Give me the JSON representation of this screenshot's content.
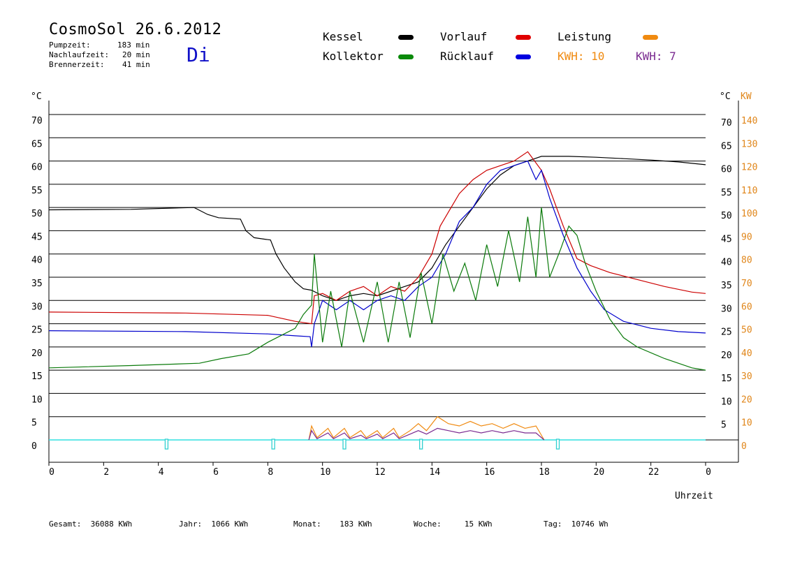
{
  "header": {
    "title": "CosmoSol 26.6.2012",
    "day": "Di",
    "stats": [
      {
        "label": "Pumpzeit:",
        "value": "183 min"
      },
      {
        "label": "Nachlaufzeit:",
        "value": "20 min"
      },
      {
        "label": "Brennerzeit:",
        "value": "41 min"
      }
    ]
  },
  "legend": {
    "kessel": {
      "label": "Kessel",
      "color": "#000000"
    },
    "kollektor": {
      "label": "Kollektor",
      "color": "#0a7a0a"
    },
    "vorlauf": {
      "label": "Vorlauf",
      "color": "#e00000"
    },
    "ruecklauf": {
      "label": "Rücklauf",
      "color": "#0000e0"
    },
    "leistung": {
      "label": "Leistung",
      "color": "#f08a10"
    },
    "kwh1": {
      "label": "KWH:",
      "value": "10",
      "color": "#f08a10"
    },
    "kwh2": {
      "label": "KWH:",
      "value": "7",
      "color": "#7a2a90"
    }
  },
  "footer": {
    "gesamt": {
      "label": "Gesamt:",
      "value": "36088 KWh"
    },
    "jahr": {
      "label": "Jahr:",
      "value": "1066 KWh"
    },
    "monat": {
      "label": "Monat:",
      "value": "183 KWh"
    },
    "woche": {
      "label": "Woche:",
      "value": "15 KWh"
    },
    "tag": {
      "label": "Tag:",
      "value": "10746 Wh"
    }
  },
  "chart_data": {
    "type": "line",
    "xlabel": "Uhrzeit",
    "ylabel_left": "°C",
    "ylabel_right_temp": "°C",
    "ylabel_right_power": "KW",
    "xlim": [
      0,
      24
    ],
    "ylim": [
      0,
      70
    ],
    "x_ticks": [
      "0",
      "2",
      "4",
      "6",
      "8",
      "10",
      "12",
      "14",
      "16",
      "18",
      "20",
      "22",
      "0"
    ],
    "y_ticks_left": [
      0,
      5,
      10,
      15,
      20,
      25,
      30,
      35,
      40,
      45,
      50,
      55,
      60,
      65,
      70
    ],
    "y_ticks_right_temp": [
      5,
      10,
      15,
      20,
      25,
      30,
      35,
      40,
      45,
      50,
      55,
      60,
      65,
      70
    ],
    "y_ticks_right_power": [
      0,
      10,
      20,
      30,
      40,
      50,
      60,
      70,
      80,
      90,
      100,
      110,
      120,
      130,
      140
    ],
    "series": [
      {
        "name": "Kessel",
        "color": "#000000",
        "points": [
          [
            0,
            49.5
          ],
          [
            3,
            49.6
          ],
          [
            5.3,
            50
          ],
          [
            5.8,
            48.5
          ],
          [
            6.2,
            47.8
          ],
          [
            7.0,
            47.5
          ],
          [
            7.2,
            45
          ],
          [
            7.5,
            43.5
          ],
          [
            8.1,
            43
          ],
          [
            8.3,
            40
          ],
          [
            8.6,
            37
          ],
          [
            9.0,
            34
          ],
          [
            9.3,
            32.5
          ],
          [
            9.6,
            32.2
          ],
          [
            10.0,
            31
          ],
          [
            10.5,
            30
          ],
          [
            11.0,
            31
          ],
          [
            11.5,
            31.5
          ],
          [
            12.0,
            31
          ],
          [
            12.5,
            32
          ],
          [
            13.0,
            33
          ],
          [
            13.5,
            34
          ],
          [
            14.0,
            37
          ],
          [
            14.5,
            42
          ],
          [
            15.0,
            46
          ],
          [
            15.5,
            50
          ],
          [
            16.0,
            54
          ],
          [
            16.5,
            57
          ],
          [
            17.0,
            59
          ],
          [
            17.5,
            60
          ],
          [
            18.0,
            61
          ],
          [
            19.0,
            61
          ],
          [
            20.0,
            60.8
          ],
          [
            21.0,
            60.5
          ],
          [
            22.0,
            60.2
          ],
          [
            23.0,
            59.8
          ],
          [
            24.0,
            59.2
          ]
        ]
      },
      {
        "name": "Vorlauf",
        "color": "#cc0000",
        "points": [
          [
            0,
            27.5
          ],
          [
            5,
            27.3
          ],
          [
            8,
            26.8
          ],
          [
            9.0,
            25.5
          ],
          [
            9.6,
            25
          ],
          [
            9.7,
            31
          ],
          [
            10.0,
            31.5
          ],
          [
            10.5,
            30
          ],
          [
            11.0,
            32
          ],
          [
            11.5,
            33
          ],
          [
            12.0,
            31
          ],
          [
            12.5,
            33
          ],
          [
            13.0,
            32
          ],
          [
            13.5,
            35
          ],
          [
            14.0,
            40
          ],
          [
            14.3,
            46
          ],
          [
            14.6,
            49
          ],
          [
            15.0,
            53
          ],
          [
            15.5,
            56
          ],
          [
            16.0,
            58
          ],
          [
            16.5,
            59
          ],
          [
            17.0,
            60
          ],
          [
            17.5,
            62
          ],
          [
            18.0,
            58
          ],
          [
            18.3,
            54
          ],
          [
            18.8,
            46
          ],
          [
            19.3,
            39
          ],
          [
            19.8,
            37.5
          ],
          [
            20.5,
            36
          ],
          [
            21.5,
            34.5
          ],
          [
            22.5,
            33
          ],
          [
            23.5,
            31.8
          ],
          [
            24.0,
            31.5
          ]
        ]
      },
      {
        "name": "Rücklauf",
        "color": "#0000cc",
        "points": [
          [
            0,
            23.5
          ],
          [
            5,
            23.3
          ],
          [
            8,
            22.8
          ],
          [
            9.0,
            22.4
          ],
          [
            9.55,
            22.2
          ],
          [
            9.6,
            20
          ],
          [
            9.7,
            25
          ],
          [
            10.0,
            30
          ],
          [
            10.5,
            28
          ],
          [
            11.0,
            30
          ],
          [
            11.5,
            28
          ],
          [
            12.0,
            30
          ],
          [
            12.5,
            31
          ],
          [
            13.0,
            30
          ],
          [
            13.5,
            33
          ],
          [
            14.0,
            35
          ],
          [
            14.5,
            40
          ],
          [
            15.0,
            47
          ],
          [
            15.5,
            50
          ],
          [
            16.0,
            55
          ],
          [
            16.5,
            58
          ],
          [
            17.0,
            59
          ],
          [
            17.5,
            60
          ],
          [
            17.8,
            56
          ],
          [
            18.0,
            58
          ],
          [
            18.3,
            52
          ],
          [
            18.8,
            44
          ],
          [
            19.3,
            37
          ],
          [
            19.8,
            32
          ],
          [
            20.3,
            28
          ],
          [
            21.0,
            25.5
          ],
          [
            22.0,
            24
          ],
          [
            23.0,
            23.3
          ],
          [
            24.0,
            23
          ]
        ]
      },
      {
        "name": "Kollektor",
        "color": "#0a7a0a",
        "points": [
          [
            0,
            15.5
          ],
          [
            3,
            16
          ],
          [
            5.5,
            16.5
          ],
          [
            6.3,
            17.5
          ],
          [
            7.3,
            18.5
          ],
          [
            8.0,
            21
          ],
          [
            8.5,
            22.5
          ],
          [
            9.0,
            24
          ],
          [
            9.3,
            27
          ],
          [
            9.6,
            29
          ],
          [
            9.7,
            40
          ],
          [
            10.0,
            21
          ],
          [
            10.3,
            32
          ],
          [
            10.7,
            20
          ],
          [
            11.0,
            32
          ],
          [
            11.5,
            21
          ],
          [
            12.0,
            34
          ],
          [
            12.4,
            21
          ],
          [
            12.8,
            34
          ],
          [
            13.2,
            22
          ],
          [
            13.6,
            36
          ],
          [
            14.0,
            25
          ],
          [
            14.4,
            40
          ],
          [
            14.8,
            32
          ],
          [
            15.2,
            38
          ],
          [
            15.6,
            30
          ],
          [
            16.0,
            42
          ],
          [
            16.4,
            33
          ],
          [
            16.8,
            45
          ],
          [
            17.2,
            34
          ],
          [
            17.5,
            48
          ],
          [
            17.8,
            35
          ],
          [
            18.0,
            50
          ],
          [
            18.3,
            35
          ],
          [
            18.7,
            41
          ],
          [
            19.0,
            46
          ],
          [
            19.3,
            44
          ],
          [
            19.6,
            38
          ],
          [
            20.0,
            32
          ],
          [
            20.5,
            26
          ],
          [
            21.0,
            22
          ],
          [
            21.5,
            20
          ],
          [
            22.5,
            17.5
          ],
          [
            23.5,
            15.5
          ],
          [
            24.0,
            15
          ]
        ]
      },
      {
        "name": "Leistung",
        "color": "#f08a10",
        "unit": "KW",
        "points": [
          [
            9.5,
            0
          ],
          [
            9.6,
            6
          ],
          [
            9.8,
            1
          ],
          [
            10.2,
            5
          ],
          [
            10.4,
            1
          ],
          [
            10.8,
            5
          ],
          [
            11.0,
            1
          ],
          [
            11.4,
            4
          ],
          [
            11.6,
            1
          ],
          [
            12.0,
            4
          ],
          [
            12.2,
            1
          ],
          [
            12.6,
            5
          ],
          [
            12.8,
            1
          ],
          [
            13.2,
            4
          ],
          [
            13.5,
            7
          ],
          [
            13.8,
            4
          ],
          [
            14.2,
            10
          ],
          [
            14.6,
            7
          ],
          [
            15.0,
            6
          ],
          [
            15.4,
            8
          ],
          [
            15.8,
            6
          ],
          [
            16.2,
            7
          ],
          [
            16.6,
            5
          ],
          [
            17.0,
            7
          ],
          [
            17.4,
            5
          ],
          [
            17.8,
            6
          ],
          [
            18.1,
            0
          ]
        ]
      },
      {
        "name": "Leistung 2",
        "color": "#7a2a90",
        "unit": "KW",
        "points": [
          [
            9.5,
            0
          ],
          [
            9.6,
            4
          ],
          [
            9.8,
            0.5
          ],
          [
            10.2,
            3
          ],
          [
            10.4,
            0.5
          ],
          [
            10.8,
            3
          ],
          [
            11.0,
            0.5
          ],
          [
            11.4,
            2
          ],
          [
            11.6,
            0.5
          ],
          [
            12.0,
            2.5
          ],
          [
            12.2,
            0.5
          ],
          [
            12.6,
            3
          ],
          [
            12.8,
            0.5
          ],
          [
            13.2,
            2.5
          ],
          [
            13.5,
            4
          ],
          [
            13.8,
            2.5
          ],
          [
            14.2,
            5
          ],
          [
            14.6,
            4
          ],
          [
            15.0,
            3
          ],
          [
            15.4,
            4
          ],
          [
            15.8,
            3
          ],
          [
            16.2,
            4
          ],
          [
            16.6,
            3
          ],
          [
            17.0,
            4
          ],
          [
            17.4,
            3
          ],
          [
            17.8,
            3
          ],
          [
            18.1,
            0
          ]
        ]
      }
    ],
    "burner_markers_h": [
      4.3,
      8.2,
      10.8,
      13.6,
      18.6
    ]
  }
}
